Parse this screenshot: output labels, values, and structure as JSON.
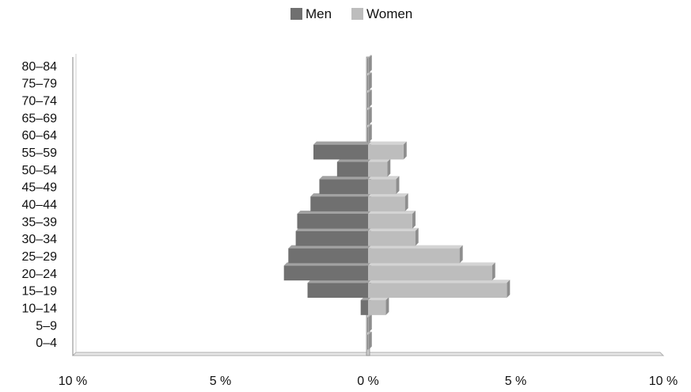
{
  "chart_data": {
    "type": "bar",
    "orientation": "horizontal",
    "subtype": "population-pyramid",
    "title": "",
    "xlabel": "",
    "ylabel": "",
    "categories": [
      "0–4",
      "5–9",
      "10–14",
      "15–19",
      "20–24",
      "25–29",
      "30–34",
      "35–39",
      "40–44",
      "45–49",
      "50–54",
      "55–59",
      "60–64",
      "65–69",
      "70–74",
      "75–79",
      "80–84"
    ],
    "series": [
      {
        "name": "Men",
        "color": "#707070",
        "values": [
          0.02,
          0.02,
          0.25,
          2.05,
          2.85,
          2.7,
          2.45,
          2.4,
          1.95,
          1.65,
          1.05,
          1.85,
          0.02,
          0.02,
          0.02,
          0.02,
          0.02
        ]
      },
      {
        "name": "Women",
        "color": "#bdbdbd",
        "values": [
          0.02,
          0.02,
          0.6,
          4.7,
          4.2,
          3.1,
          1.6,
          1.5,
          1.25,
          0.95,
          0.65,
          1.2,
          0.02,
          0.02,
          0.02,
          0.02,
          0.02
        ]
      }
    ],
    "xlim": [
      -10,
      10
    ],
    "xticks": [
      {
        "value": -10,
        "label": "10 %"
      },
      {
        "value": -5,
        "label": "5 %"
      },
      {
        "value": 0,
        "label": "0 %"
      },
      {
        "value": 5,
        "label": "5 %"
      },
      {
        "value": 10,
        "label": "10 %"
      }
    ],
    "legend": {
      "position": "top-center",
      "entries": [
        "Men",
        "Women"
      ]
    },
    "grid": false
  }
}
